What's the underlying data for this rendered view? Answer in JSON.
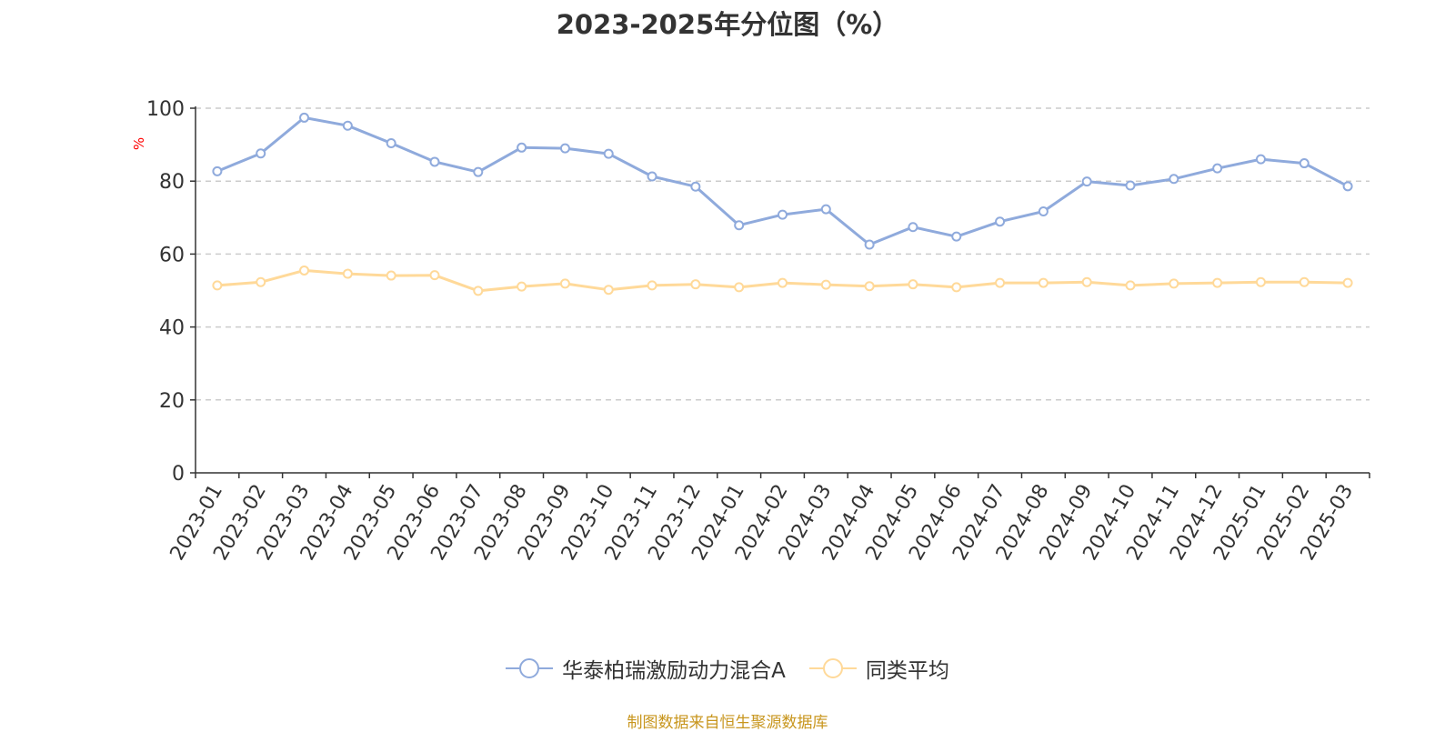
{
  "chart_data": {
    "type": "line",
    "title": "2023-2025年分位图（%）",
    "ylabel": "%",
    "xlabel": "",
    "ylim": [
      0,
      100
    ],
    "yticks": [
      0,
      20,
      40,
      60,
      80,
      100
    ],
    "grid": true,
    "legend_position": "bottom",
    "categories": [
      "2023-01",
      "2023-02",
      "2023-03",
      "2023-04",
      "2023-05",
      "2023-06",
      "2023-07",
      "2023-08",
      "2023-09",
      "2023-10",
      "2023-11",
      "2023-12",
      "2024-01",
      "2024-02",
      "2024-03",
      "2024-04",
      "2024-05",
      "2024-06",
      "2024-07",
      "2024-08",
      "2024-09",
      "2024-10",
      "2024-11",
      "2024-12",
      "2025-01",
      "2025-02",
      "2025-03"
    ],
    "series": [
      {
        "name": "华泰柏瑞激励动力混合A",
        "color": "#8faadc",
        "values": [
          82.7,
          87.6,
          97.4,
          95.2,
          90.4,
          85.3,
          82.5,
          89.2,
          89.0,
          87.5,
          81.3,
          78.5,
          67.9,
          70.8,
          72.3,
          62.6,
          67.4,
          64.8,
          68.9,
          71.7,
          79.9,
          78.8,
          80.6,
          83.5,
          86.0,
          84.9,
          78.6
        ]
      },
      {
        "name": "同类平均",
        "color": "#ffd999",
        "values": [
          51.4,
          52.3,
          55.5,
          54.6,
          54.1,
          54.2,
          49.9,
          51.1,
          51.9,
          50.2,
          51.4,
          51.7,
          50.9,
          52.1,
          51.6,
          51.2,
          51.7,
          50.9,
          52.1,
          52.1,
          52.3,
          51.4,
          51.9,
          52.1,
          52.3,
          52.3,
          52.1
        ]
      }
    ]
  },
  "credit": {
    "text": "制图数据来自恒生聚源数据库",
    "color": "#c8961e"
  },
  "colors": {
    "axis": "#333333",
    "grid": "#cccccc",
    "ylabel": "#ff0000"
  }
}
